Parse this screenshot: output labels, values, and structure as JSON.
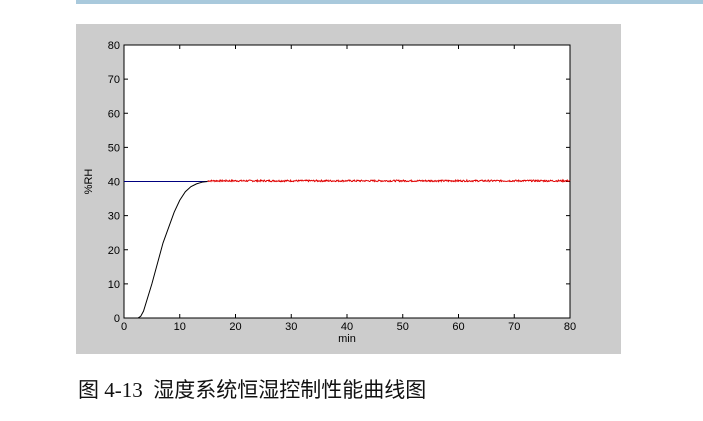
{
  "caption": "图 4-13  湿度系统恒湿控制性能曲线图",
  "chart_data": {
    "type": "line",
    "xlabel": "min",
    "ylabel": "%RH",
    "xlim": [
      0,
      80
    ],
    "ylim": [
      0,
      80
    ],
    "xticks": [
      0,
      10,
      20,
      30,
      40,
      50,
      60,
      70,
      80
    ],
    "yticks": [
      0,
      10,
      20,
      30,
      40,
      50,
      60,
      70,
      80
    ],
    "grid": false,
    "colors": {
      "setpoint": "#00007f",
      "response": "#000000",
      "steady": "#e00000",
      "figure_bg": "#cccccc"
    },
    "series": [
      {
        "key": "setpoint",
        "x": [
          0,
          15
        ],
        "y": [
          40,
          40
        ]
      },
      {
        "key": "response",
        "x": [
          0,
          2.5,
          3,
          3.5,
          5,
          7,
          9,
          10,
          11,
          12,
          13,
          14,
          15
        ],
        "y": [
          0,
          0,
          0.5,
          2,
          10,
          22,
          31,
          34.5,
          37,
          38.5,
          39.3,
          39.8,
          40
        ]
      },
      {
        "key": "steady",
        "x": [
          15,
          80
        ],
        "y": [
          40.2,
          40.2
        ],
        "noise": 0.25
      }
    ]
  }
}
